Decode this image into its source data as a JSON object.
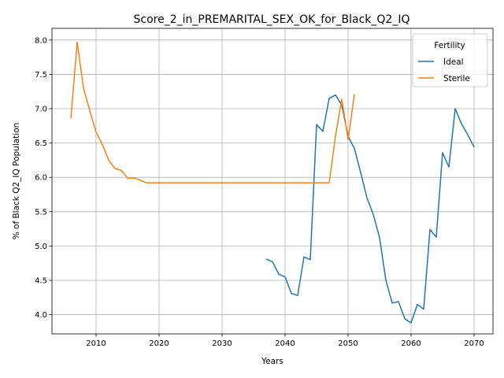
{
  "chart_data": {
    "type": "line",
    "title": "Score_2_in_PREMARITAL_SEX_OK_for_Black_Q2_IQ",
    "xlabel": "Years",
    "ylabel": "% of Black Q2_IQ Population",
    "xlim": [
      2003,
      2073
    ],
    "ylim": [
      3.72,
      8.17
    ],
    "xticks": [
      2010,
      2020,
      2030,
      2040,
      2050,
      2060,
      2070
    ],
    "yticks": [
      4.0,
      4.5,
      5.0,
      5.5,
      6.0,
      6.5,
      7.0,
      7.5,
      8.0
    ],
    "ytick_labels": [
      "4.0",
      "4.5",
      "5.0",
      "5.5",
      "6.0",
      "6.5",
      "7.0",
      "7.5",
      "8.0"
    ],
    "grid": true,
    "legend": {
      "title": "Fertility",
      "placement": "top-right"
    },
    "series": [
      {
        "name": "Ideal",
        "color": "#1f77b4",
        "x": [
          2037,
          2038,
          2039,
          2040,
          2041,
          2042,
          2043,
          2044,
          2045,
          2046,
          2047,
          2048,
          2049,
          2050,
          2051,
          2052,
          2053,
          2054,
          2055,
          2056,
          2057,
          2058,
          2059,
          2060,
          2061,
          2062,
          2063,
          2064,
          2065,
          2066,
          2067,
          2068,
          2069,
          2070
        ],
        "y": [
          4.81,
          4.77,
          4.59,
          4.55,
          4.31,
          4.28,
          4.84,
          4.8,
          6.77,
          6.67,
          7.15,
          7.2,
          7.05,
          6.6,
          6.42,
          6.07,
          5.7,
          5.46,
          5.12,
          4.5,
          4.17,
          4.19,
          3.94,
          3.88,
          4.15,
          4.08,
          5.24,
          5.13,
          6.36,
          6.15,
          7.0,
          6.78,
          6.62,
          6.44
        ]
      },
      {
        "name": "Sterile",
        "color": "#ff7f0e",
        "x": [
          2006,
          2007,
          2008,
          2009,
          2010,
          2011,
          2012,
          2013,
          2014,
          2015,
          2016,
          2017,
          2018,
          2019,
          2020,
          2021,
          2022,
          2023,
          2024,
          2025,
          2026,
          2027,
          2028,
          2029,
          2030,
          2031,
          2032,
          2033,
          2034,
          2035,
          2036,
          2037,
          2038,
          2039,
          2040,
          2041,
          2042,
          2043,
          2044,
          2045,
          2046,
          2047,
          2048,
          2049,
          2050,
          2051
        ],
        "y": [
          6.86,
          7.97,
          7.3,
          6.97,
          6.66,
          6.48,
          6.25,
          6.13,
          6.1,
          5.99,
          5.99,
          5.96,
          5.92,
          5.92,
          5.92,
          5.92,
          5.92,
          5.92,
          5.92,
          5.92,
          5.92,
          5.92,
          5.92,
          5.92,
          5.92,
          5.92,
          5.92,
          5.92,
          5.92,
          5.92,
          5.92,
          5.92,
          5.92,
          5.92,
          5.92,
          5.92,
          5.92,
          5.92,
          5.92,
          5.92,
          5.92,
          5.92,
          6.6,
          7.14,
          6.55,
          7.21
        ]
      }
    ]
  }
}
